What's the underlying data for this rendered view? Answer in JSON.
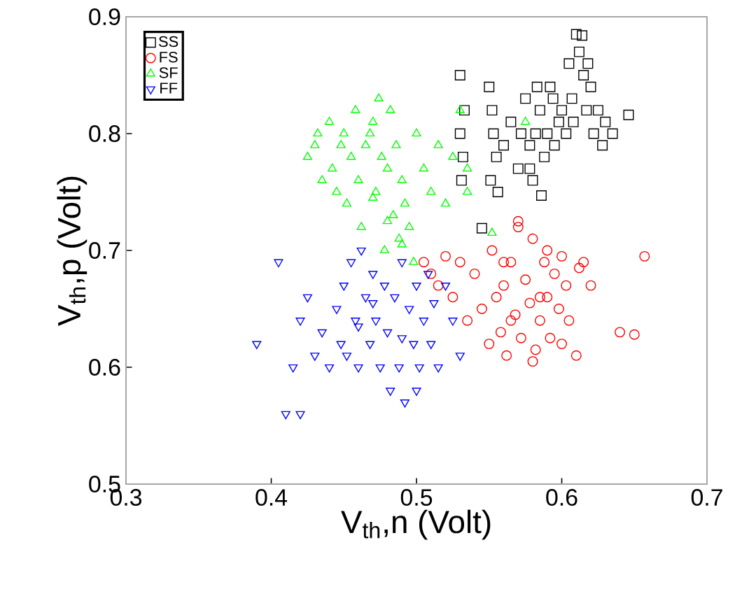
{
  "chart_data": {
    "type": "scatter",
    "xlabel": "V$_{th}$,n (Volt)",
    "ylabel": "V$_{th}$,p (Volt)",
    "xlim": [
      0.3,
      0.7
    ],
    "ylim": [
      0.5,
      0.9
    ],
    "xticks": [
      0.3,
      0.4,
      0.5,
      0.6,
      0.7
    ],
    "yticks": [
      0.5,
      0.6,
      0.7,
      0.8,
      0.9
    ],
    "legend": "top left",
    "grid": false,
    "series": [
      {
        "name": "SS",
        "color": "#000000",
        "marker": "square",
        "x": [
          0.53,
          0.53,
          0.532,
          0.531,
          0.533,
          0.545,
          0.55,
          0.552,
          0.553,
          0.555,
          0.551,
          0.556,
          0.56,
          0.565,
          0.57,
          0.572,
          0.575,
          0.578,
          0.58,
          0.582,
          0.585,
          0.586,
          0.588,
          0.59,
          0.592,
          0.595,
          0.598,
          0.6,
          0.603,
          0.605,
          0.607,
          0.61,
          0.612,
          0.614,
          0.615,
          0.617,
          0.62,
          0.622,
          0.625,
          0.628,
          0.63,
          0.635,
          0.646,
          0.578,
          0.583,
          0.594,
          0.608,
          0.618
        ],
        "values": [
          0.85,
          0.8,
          0.78,
          0.76,
          0.82,
          0.719,
          0.84,
          0.82,
          0.8,
          0.78,
          0.76,
          0.75,
          0.79,
          0.81,
          0.77,
          0.8,
          0.83,
          0.79,
          0.76,
          0.8,
          0.82,
          0.747,
          0.78,
          0.8,
          0.84,
          0.79,
          0.81,
          0.82,
          0.8,
          0.86,
          0.83,
          0.885,
          0.87,
          0.884,
          0.85,
          0.82,
          0.84,
          0.8,
          0.82,
          0.79,
          0.81,
          0.8,
          0.816,
          0.77,
          0.84,
          0.83,
          0.81,
          0.86
        ]
      },
      {
        "name": "FS",
        "color": "#ff0000",
        "marker": "circle",
        "x": [
          0.505,
          0.51,
          0.515,
          0.52,
          0.525,
          0.53,
          0.535,
          0.54,
          0.545,
          0.55,
          0.552,
          0.555,
          0.558,
          0.56,
          0.562,
          0.565,
          0.568,
          0.57,
          0.572,
          0.575,
          0.578,
          0.58,
          0.582,
          0.585,
          0.588,
          0.59,
          0.592,
          0.595,
          0.598,
          0.6,
          0.603,
          0.605,
          0.61,
          0.612,
          0.615,
          0.62,
          0.64,
          0.65,
          0.657,
          0.6,
          0.57,
          0.58,
          0.56,
          0.59,
          0.565,
          0.585
        ],
        "values": [
          0.69,
          0.68,
          0.67,
          0.695,
          0.66,
          0.69,
          0.64,
          0.68,
          0.65,
          0.62,
          0.7,
          0.66,
          0.63,
          0.67,
          0.61,
          0.69,
          0.645,
          0.72,
          0.625,
          0.675,
          0.655,
          0.71,
          0.615,
          0.64,
          0.69,
          0.66,
          0.625,
          0.68,
          0.65,
          0.695,
          0.67,
          0.64,
          0.61,
          0.685,
          0.69,
          0.67,
          0.63,
          0.628,
          0.695,
          0.62,
          0.725,
          0.605,
          0.69,
          0.7,
          0.64,
          0.66
        ]
      },
      {
        "name": "SF",
        "color": "#00ff00",
        "marker": "triangle",
        "x": [
          0.425,
          0.43,
          0.432,
          0.435,
          0.44,
          0.442,
          0.445,
          0.448,
          0.45,
          0.452,
          0.455,
          0.458,
          0.46,
          0.462,
          0.465,
          0.468,
          0.47,
          0.472,
          0.474,
          0.476,
          0.478,
          0.48,
          0.482,
          0.484,
          0.486,
          0.488,
          0.49,
          0.492,
          0.495,
          0.498,
          0.5,
          0.505,
          0.51,
          0.515,
          0.52,
          0.525,
          0.53,
          0.535,
          0.535,
          0.575,
          0.552,
          0.47,
          0.48,
          0.49
        ],
        "values": [
          0.78,
          0.79,
          0.8,
          0.76,
          0.81,
          0.77,
          0.75,
          0.79,
          0.8,
          0.74,
          0.78,
          0.82,
          0.76,
          0.72,
          0.79,
          0.8,
          0.81,
          0.75,
          0.83,
          0.78,
          0.7,
          0.77,
          0.82,
          0.73,
          0.79,
          0.71,
          0.76,
          0.74,
          0.72,
          0.69,
          0.8,
          0.77,
          0.75,
          0.79,
          0.74,
          0.78,
          0.82,
          0.77,
          0.75,
          0.81,
          0.715,
          0.745,
          0.725,
          0.705
        ]
      },
      {
        "name": "FF",
        "color": "#0000ff",
        "marker": "triangle-down",
        "x": [
          0.39,
          0.405,
          0.41,
          0.42,
          0.415,
          0.42,
          0.425,
          0.43,
          0.435,
          0.44,
          0.445,
          0.448,
          0.45,
          0.452,
          0.455,
          0.458,
          0.46,
          0.462,
          0.465,
          0.468,
          0.47,
          0.472,
          0.475,
          0.478,
          0.48,
          0.482,
          0.485,
          0.488,
          0.49,
          0.492,
          0.495,
          0.498,
          0.5,
          0.502,
          0.505,
          0.508,
          0.51,
          0.512,
          0.515,
          0.52,
          0.525,
          0.53,
          0.47,
          0.49,
          0.46,
          0.5
        ],
        "values": [
          0.62,
          0.69,
          0.56,
          0.56,
          0.6,
          0.64,
          0.66,
          0.61,
          0.63,
          0.6,
          0.65,
          0.62,
          0.67,
          0.61,
          0.69,
          0.64,
          0.6,
          0.7,
          0.66,
          0.62,
          0.68,
          0.64,
          0.6,
          0.67,
          0.63,
          0.58,
          0.66,
          0.6,
          0.69,
          0.57,
          0.65,
          0.62,
          0.67,
          0.6,
          0.64,
          0.68,
          0.62,
          0.655,
          0.6,
          0.67,
          0.64,
          0.61,
          0.655,
          0.625,
          0.635,
          0.58
        ]
      }
    ]
  }
}
